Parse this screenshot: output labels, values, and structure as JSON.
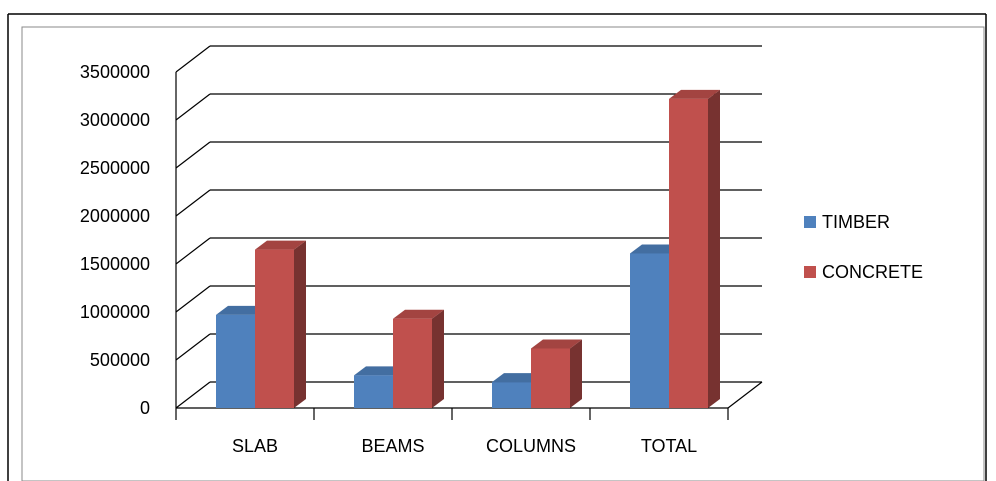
{
  "chart_data": {
    "type": "bar",
    "categories": [
      "SLAB",
      "BEAMS",
      "COLUMNS",
      "TOTAL"
    ],
    "series": [
      {
        "name": "TIMBER",
        "values": [
          970000,
          340000,
          270000,
          1610000
        ],
        "color": "#4F81BD"
      },
      {
        "name": "CONCRETE",
        "values": [
          1650000,
          930000,
          620000,
          3220000
        ],
        "color": "#C0504D"
      }
    ],
    "y_ticks": [
      "0",
      "500000",
      "1000000",
      "1500000",
      "2000000",
      "2500000",
      "3000000",
      "3500000"
    ],
    "ylim": [
      0,
      3500000
    ],
    "grid": true,
    "legend_position": "right",
    "style": "3d-clustered-column"
  }
}
